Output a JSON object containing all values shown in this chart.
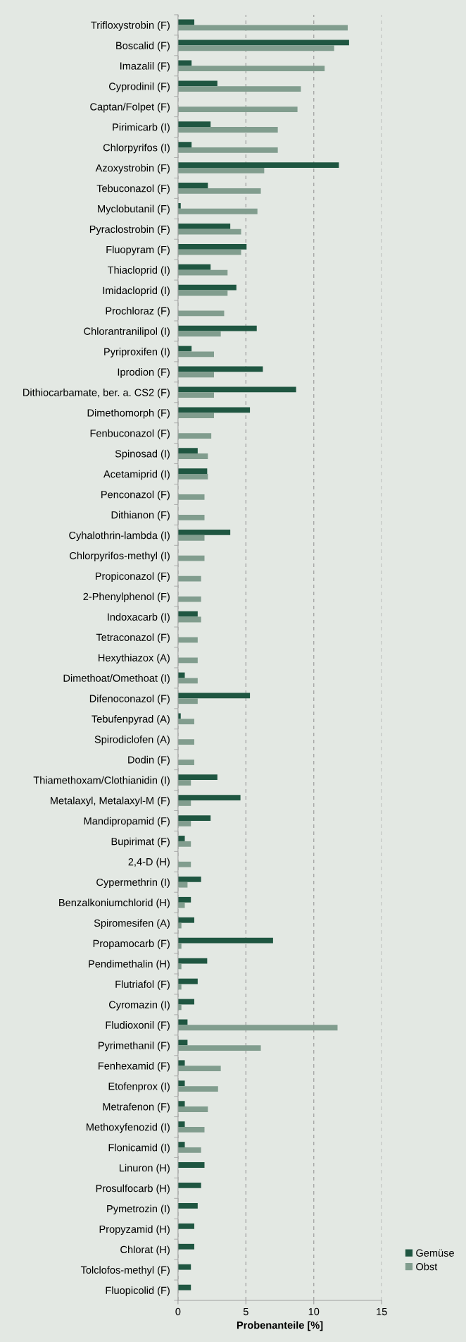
{
  "chart_data": {
    "type": "bar",
    "orientation": "horizontal",
    "xlabel": "Probenanteile [%]",
    "categories": [
      "Trifloxystrobin (F)",
      "Boscalid (F)",
      "Imazalil (F)",
      "Cyprodinil (F)",
      "Captan/Folpet (F)",
      "Pirimicarb (I)",
      "Chlorpyrifos (I)",
      "Azoxystrobin (F)",
      "Tebuconazol (F)",
      "Myclobutanil (F)",
      "Pyraclostrobin (F)",
      "Fluopyram (F)",
      "Thiacloprid (I)",
      "Imidacloprid (I)",
      "Prochloraz (F)",
      "Chlorantranilipol (I)",
      "Pyriproxifen (I)",
      "Iprodion (F)",
      "Dithiocarbamate, ber. a. CS2 (F)",
      "Dimethomorph (F)",
      "Fenbuconazol (F)",
      "Spinosad (I)",
      "Acetamiprid (I)",
      "Penconazol (F)",
      "Dithianon (F)",
      "Cyhalothrin-lambda (I)",
      "Chlorpyrifos-methyl (I)",
      "Propiconazol (F)",
      "2-Phenylphenol (F)",
      "Indoxacarb (I)",
      "Tetraconazol (F)",
      "Hexythiazox (A)",
      "Dimethoat/Omethoat (I)",
      "Difenoconazol (F)",
      "Tebufenpyrad (A)",
      "Spirodiclofen (A)",
      "Dodin (F)",
      "Thiamethoxam/Clothianidin (I)",
      "Metalaxyl, Metalaxyl-M (F)",
      "Mandipropamid (F)",
      "Bupirimat (F)",
      "2,4-D (H)",
      "Cypermethrin (I)",
      "Benzalkoniumchlorid (H)",
      "Spiromesifen (A)",
      "Propamocarb (F)",
      "Pendimethalin (H)",
      "Flutriafol (F)",
      "Cyromazin (I)",
      "Fludioxonil (F)",
      "Pyrimethanil (F)",
      "Fenhexamid (F)",
      "Etofenprox (I)",
      "Metrafenon (F)",
      "Methoxyfenozid (I)",
      "Flonicamid (I)",
      "Linuron (H)",
      "Prosulfocarb (H)",
      "Pymetrozin (I)",
      "Propyzamid (H)",
      "Chlorat (H)",
      "Tolclofos-methyl (F)",
      "Fluopicolid (F)"
    ],
    "series": [
      {
        "name": "Gemüse",
        "color": "#1f5641",
        "values": [
          1.2,
          12.6,
          1.0,
          2.9,
          null,
          2.4,
          1.0,
          11.85,
          2.2,
          0.2,
          3.85,
          5.05,
          2.4,
          4.3,
          null,
          5.8,
          1.0,
          6.25,
          8.7,
          5.3,
          null,
          1.45,
          2.15,
          null,
          null,
          3.85,
          null,
          null,
          null,
          1.45,
          null,
          null,
          0.5,
          5.3,
          0.2,
          null,
          null,
          2.9,
          4.6,
          2.4,
          0.5,
          null,
          1.7,
          0.95,
          1.2,
          7.0,
          2.15,
          1.45,
          1.2,
          0.7,
          0.7,
          0.5,
          0.5,
          0.5,
          0.5,
          0.5,
          1.95,
          1.7,
          1.45,
          1.2,
          1.2,
          0.95,
          0.95
        ]
      },
      {
        "name": "Obst",
        "color": "#819d8e",
        "values": [
          12.5,
          11.5,
          10.8,
          9.05,
          8.8,
          7.35,
          7.35,
          6.35,
          6.1,
          5.85,
          4.65,
          4.65,
          3.65,
          3.65,
          3.4,
          3.15,
          2.65,
          2.65,
          2.65,
          2.65,
          2.45,
          2.2,
          2.2,
          1.95,
          1.95,
          1.95,
          1.95,
          1.7,
          1.7,
          1.7,
          1.45,
          1.45,
          1.45,
          1.45,
          1.2,
          1.2,
          1.2,
          0.95,
          0.95,
          0.95,
          0.95,
          0.95,
          0.7,
          0.5,
          0.25,
          0.25,
          0.25,
          0.25,
          0.25,
          11.75,
          6.1,
          3.15,
          2.95,
          2.2,
          1.95,
          1.7,
          null,
          null,
          null,
          null,
          null,
          null,
          null
        ]
      }
    ],
    "xlim": [
      0,
      15
    ],
    "xticks": [
      0,
      5,
      10,
      15
    ],
    "grid": "x",
    "legend": "bottom right"
  }
}
